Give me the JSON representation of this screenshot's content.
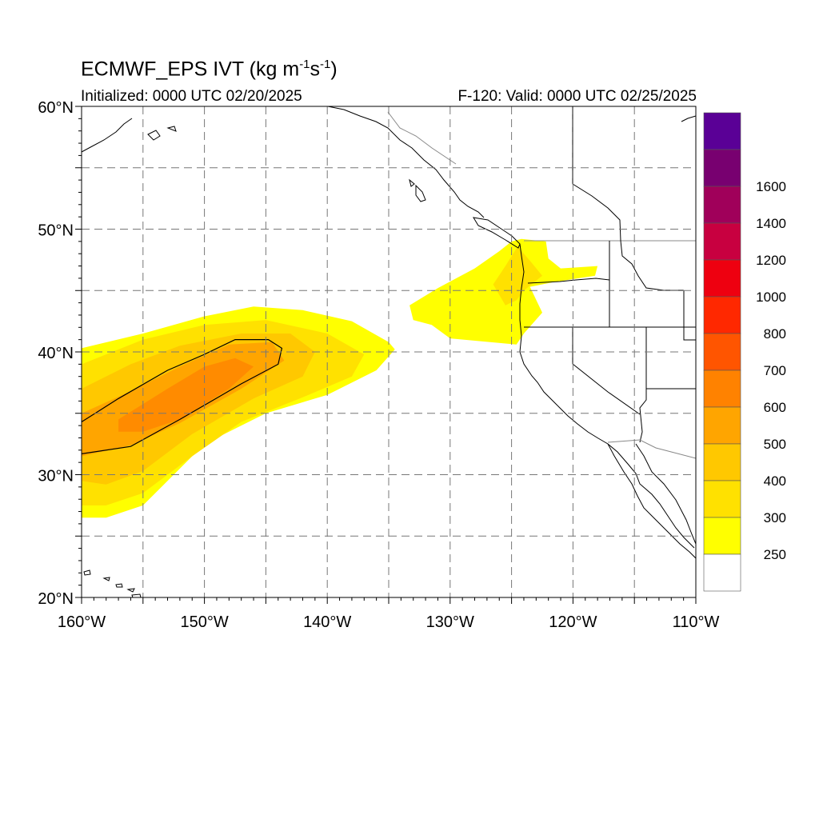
{
  "title": {
    "main": "ECMWF_EPS IVT (kg m",
    "sup1": "-1",
    "mid": "s",
    "sup2": "-1",
    "end": ")"
  },
  "subtitle_left": "Initialized: 0000 UTC 02/20/2025",
  "subtitle_right": "F-120: Valid: 0000 UTC 02/25/2025",
  "chart_data": {
    "type": "heatmap",
    "title": "ECMWF_EPS IVT (kg m-1s-1)",
    "xlim": [
      -160,
      -110
    ],
    "ylim": [
      20,
      60
    ],
    "x_ticks": [
      {
        "value": -160,
        "label": "160°W"
      },
      {
        "value": -150,
        "label": "150°W"
      },
      {
        "value": -140,
        "label": "140°W"
      },
      {
        "value": -130,
        "label": "130°W"
      },
      {
        "value": -120,
        "label": "120°W"
      },
      {
        "value": -110,
        "label": "110°W"
      }
    ],
    "y_ticks": [
      {
        "value": 60,
        "label": "60°N"
      },
      {
        "value": 50,
        "label": "50°N"
      },
      {
        "value": 40,
        "label": "40°N"
      },
      {
        "value": 30,
        "label": "30°N"
      },
      {
        "value": 20,
        "label": "20°N"
      }
    ],
    "grid": true,
    "grid_lon_step": 5,
    "grid_lat_step": 5,
    "colorbar": {
      "labels": [
        "250",
        "300",
        "400",
        "500",
        "600",
        "700",
        "800",
        "1000",
        "1200",
        "1400",
        "1600"
      ],
      "colors": [
        "#ffffff",
        "#ffff00",
        "#ffe100",
        "#ffc800",
        "#ffa500",
        "#ff8200",
        "#ff5500",
        "#ff2800",
        "#ee0010",
        "#c80040",
        "#a0005a",
        "#780070",
        "#5a0096"
      ]
    },
    "ivt_regions": [
      {
        "level": "250-300",
        "color": "#ffff00",
        "polygon": [
          [
            -160,
            40.3
          ],
          [
            -155,
            41.5
          ],
          [
            -150,
            42.9
          ],
          [
            -146,
            43.7
          ],
          [
            -142,
            43.4
          ],
          [
            -138,
            42.5
          ],
          [
            -135,
            40.8
          ],
          [
            -134.5,
            40.2
          ],
          [
            -136,
            38.5
          ],
          [
            -140,
            36.5
          ],
          [
            -145,
            35
          ],
          [
            -150,
            32.5
          ],
          [
            -153,
            29.5
          ],
          [
            -155,
            27.5
          ],
          [
            -158,
            26.5
          ],
          [
            -160,
            26.5
          ]
        ]
      },
      {
        "level": "300-400",
        "color": "#ffe100",
        "polygon": [
          [
            -160,
            39
          ],
          [
            -155,
            41
          ],
          [
            -150,
            42.2
          ],
          [
            -145,
            42.6
          ],
          [
            -140,
            41.5
          ],
          [
            -137,
            39.8
          ],
          [
            -138,
            38
          ],
          [
            -142,
            36.3
          ],
          [
            -147,
            34.3
          ],
          [
            -151,
            31.5
          ],
          [
            -155,
            28.5
          ],
          [
            -158,
            27.5
          ],
          [
            -160,
            27.5
          ]
        ]
      },
      {
        "level": "400-500",
        "color": "#ffc800",
        "polygon": [
          [
            -160,
            37
          ],
          [
            -156,
            39
          ],
          [
            -152,
            40.5
          ],
          [
            -147,
            41.5
          ],
          [
            -143,
            41.5
          ],
          [
            -141,
            40
          ],
          [
            -142,
            38
          ],
          [
            -146,
            36.2
          ],
          [
            -151,
            33.3
          ],
          [
            -155,
            30.3
          ],
          [
            -158,
            29.2
          ],
          [
            -160,
            29.5
          ]
        ]
      },
      {
        "level": "500-600",
        "color": "#ffa500",
        "polygon": [
          [
            -160,
            35
          ],
          [
            -156,
            36.8
          ],
          [
            -152,
            38.8
          ],
          [
            -148,
            40.6
          ],
          [
            -144.5,
            40.8
          ],
          [
            -143.5,
            39.3
          ],
          [
            -147,
            37
          ],
          [
            -152,
            34.2
          ],
          [
            -156,
            32.4
          ],
          [
            -160,
            31.5
          ]
        ]
      },
      {
        "level": "600-700",
        "color": "#ff8b00",
        "polygon": [
          [
            -157,
            34.5
          ],
          [
            -153,
            37
          ],
          [
            -150,
            38.8
          ],
          [
            -147.5,
            39.5
          ],
          [
            -146,
            38.8
          ],
          [
            -148,
            37
          ],
          [
            -152,
            34.5
          ],
          [
            -155,
            33.5
          ],
          [
            -157,
            33.5
          ]
        ]
      },
      {
        "level": "250-300",
        "color": "#ffff00",
        "polygon": [
          [
            -124.2,
            49.2
          ],
          [
            -122.2,
            49
          ],
          [
            -122,
            47.6
          ],
          [
            -121,
            46.8
          ],
          [
            -118,
            47
          ],
          [
            -118.2,
            46.2
          ],
          [
            -121.5,
            45.7
          ],
          [
            -123.5,
            45.3
          ],
          [
            -122.5,
            43.2
          ],
          [
            -124,
            41.5
          ],
          [
            -124.6,
            40.6
          ],
          [
            -130,
            41.1
          ],
          [
            -131.5,
            42.2
          ],
          [
            -133,
            42.6
          ],
          [
            -133.3,
            43.8
          ],
          [
            -131,
            45.2
          ],
          [
            -128,
            46.8
          ],
          [
            -126,
            48.2
          ],
          [
            -125,
            49
          ]
        ]
      },
      {
        "level": "300-400",
        "color": "#ffe100",
        "polygon": [
          [
            -124.5,
            48.6
          ],
          [
            -124,
            48
          ],
          [
            -123.4,
            47.3
          ],
          [
            -122.5,
            46.2
          ],
          [
            -124,
            45
          ],
          [
            -124.6,
            44.2
          ],
          [
            -125.5,
            43.8
          ],
          [
            -126.5,
            45.5
          ],
          [
            -125.5,
            47
          ]
        ]
      }
    ],
    "contours": [
      {
        "level": 500,
        "points": [
          [
            -160,
            34.3
          ],
          [
            -157,
            36.2
          ],
          [
            -153,
            38.5
          ],
          [
            -150,
            39.8
          ],
          [
            -147.5,
            41
          ],
          [
            -144.8,
            41
          ],
          [
            -143.7,
            40.3
          ],
          [
            -144,
            39
          ],
          [
            -147,
            37.4
          ],
          [
            -152,
            34.5
          ],
          [
            -156,
            32.3
          ],
          [
            -160,
            31.7
          ]
        ]
      }
    ]
  }
}
